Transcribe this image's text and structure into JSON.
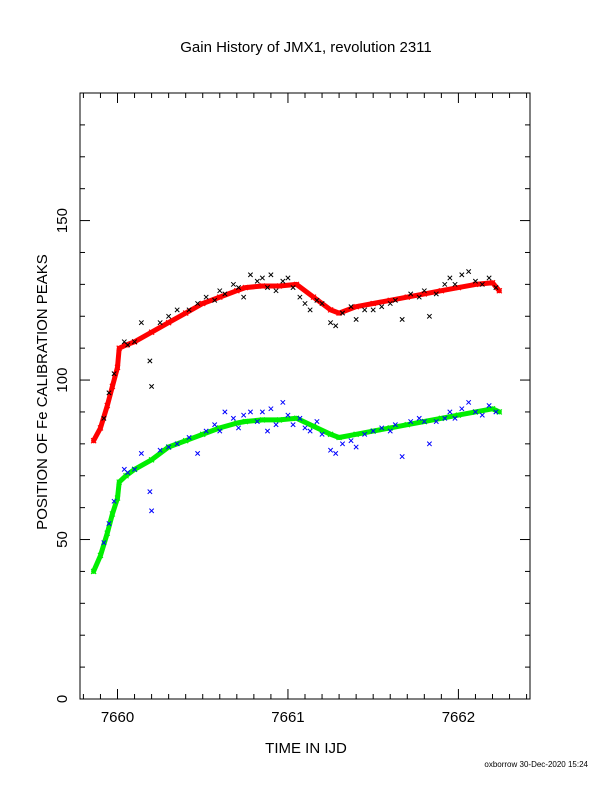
{
  "chart_data": {
    "type": "scatter",
    "title": "Gain History of JMX1, revolution 2311",
    "xlabel": "TIME IN IJD",
    "ylabel": "POSITION OF Fe CALIBRATION PEAKS",
    "xlim": [
      7659.78,
      7662.42
    ],
    "ylim": [
      0,
      190
    ],
    "xticks": [
      7660,
      7661,
      7662
    ],
    "xtick_labels": [
      "7660",
      "7661",
      "7662"
    ],
    "yticks": [
      0,
      50,
      100,
      150
    ],
    "ytick_labels": [
      "0",
      "50",
      "100",
      "150"
    ],
    "grid": false,
    "legend": "none",
    "footer": "oxborrow 30-Dec-2020 15:24",
    "colors": {
      "upper_fit": "#ff0000",
      "lower_fit": "#00ee00",
      "upper_points": "#000000",
      "lower_points": "#0000ff"
    },
    "series": [
      {
        "role": "upper-fit",
        "color": "#ff0000",
        "x": [
          7659.86,
          7659.9,
          7659.94,
          7659.97,
          7660.0,
          7660.01,
          7660.05,
          7660.1,
          7660.2,
          7660.3,
          7660.4,
          7660.5,
          7660.6,
          7660.7,
          7660.75,
          7660.85,
          7660.95,
          7661.05,
          7661.15,
          7661.25,
          7661.3,
          7661.4,
          7661.5,
          7661.6,
          7661.7,
          7661.8,
          7661.9,
          7662.0,
          7662.1,
          7662.2,
          7662.24
        ],
        "y": [
          81,
          85,
          92,
          98,
          104,
          110,
          111,
          112,
          115,
          118,
          121,
          124,
          126,
          128,
          129,
          129.5,
          129.5,
          130,
          126,
          122,
          121,
          123,
          124,
          125,
          126,
          127,
          128,
          129,
          130,
          130.5,
          128
        ]
      },
      {
        "role": "lower-fit",
        "color": "#00ee00",
        "x": [
          7659.86,
          7659.9,
          7659.94,
          7659.97,
          7660.0,
          7660.01,
          7660.05,
          7660.1,
          7660.2,
          7660.3,
          7660.4,
          7660.5,
          7660.6,
          7660.7,
          7660.75,
          7660.85,
          7660.95,
          7661.05,
          7661.15,
          7661.25,
          7661.3,
          7661.4,
          7661.5,
          7661.6,
          7661.7,
          7661.8,
          7661.9,
          7662.0,
          7662.1,
          7662.2,
          7662.24
        ],
        "y": [
          40,
          45,
          52,
          58,
          63,
          68,
          70,
          72,
          75,
          79,
          81,
          83,
          85,
          86.5,
          87,
          87.5,
          87.5,
          88,
          85.5,
          83,
          82,
          83,
          84,
          85,
          86,
          87,
          88,
          89,
          90,
          91,
          90
        ]
      },
      {
        "role": "upper-points",
        "color": "#000000",
        "x": [
          7659.92,
          7659.95,
          7659.98,
          7660.04,
          7660.06,
          7660.1,
          7660.14,
          7660.19,
          7660.2,
          7660.25,
          7660.3,
          7660.35,
          7660.42,
          7660.47,
          7660.52,
          7660.57,
          7660.6,
          7660.63,
          7660.68,
          7660.71,
          7660.74,
          7660.78,
          7660.82,
          7660.85,
          7660.88,
          7660.9,
          7660.93,
          7660.97,
          7661.0,
          7661.03,
          7661.07,
          7661.1,
          7661.13,
          7661.17,
          7661.2,
          7661.25,
          7661.28,
          7661.32,
          7661.37,
          7661.4,
          7661.45,
          7661.5,
          7661.55,
          7661.6,
          7661.63,
          7661.67,
          7661.72,
          7661.77,
          7661.8,
          7661.83,
          7661.87,
          7661.92,
          7661.95,
          7661.98,
          7662.02,
          7662.06,
          7662.1,
          7662.14,
          7662.18,
          7662.22
        ],
        "y": [
          88,
          96,
          102,
          112,
          111,
          112,
          118,
          106,
          98,
          118,
          120,
          122,
          122,
          124,
          126,
          125,
          128,
          127,
          130,
          129,
          126,
          133,
          131,
          132,
          129,
          133,
          128,
          131,
          132,
          129,
          126,
          124,
          122,
          125,
          124,
          118,
          117,
          121,
          123,
          119,
          122,
          122,
          123,
          124,
          125,
          119,
          127,
          126,
          128,
          120,
          127,
          130,
          132,
          130,
          133,
          134,
          131,
          130,
          132,
          129
        ]
      },
      {
        "role": "lower-points",
        "color": "#0000ff",
        "x": [
          7659.92,
          7659.95,
          7659.98,
          7660.04,
          7660.06,
          7660.1,
          7660.14,
          7660.19,
          7660.2,
          7660.25,
          7660.3,
          7660.35,
          7660.42,
          7660.47,
          7660.52,
          7660.57,
          7660.6,
          7660.63,
          7660.68,
          7660.71,
          7660.74,
          7660.78,
          7660.82,
          7660.85,
          7660.88,
          7660.9,
          7660.93,
          7660.97,
          7661.0,
          7661.03,
          7661.07,
          7661.1,
          7661.13,
          7661.17,
          7661.2,
          7661.25,
          7661.28,
          7661.32,
          7661.37,
          7661.4,
          7661.45,
          7661.5,
          7661.55,
          7661.6,
          7661.63,
          7661.67,
          7661.72,
          7661.77,
          7661.8,
          7661.83,
          7661.87,
          7661.92,
          7661.95,
          7661.98,
          7662.02,
          7662.06,
          7662.1,
          7662.14,
          7662.18,
          7662.22
        ],
        "y": [
          49,
          55,
          62,
          72,
          71,
          72,
          77,
          65,
          59,
          78,
          79,
          80,
          82,
          77,
          84,
          86,
          84,
          90,
          88,
          85,
          89,
          90,
          87,
          90,
          84,
          91,
          86,
          93,
          89,
          86,
          88,
          85,
          84,
          87,
          83,
          78,
          77,
          80,
          81,
          79,
          83,
          84,
          85,
          84,
          86,
          76,
          87,
          88,
          87,
          80,
          87,
          88,
          90,
          88,
          91,
          93,
          90,
          89,
          92,
          90
        ]
      }
    ]
  }
}
